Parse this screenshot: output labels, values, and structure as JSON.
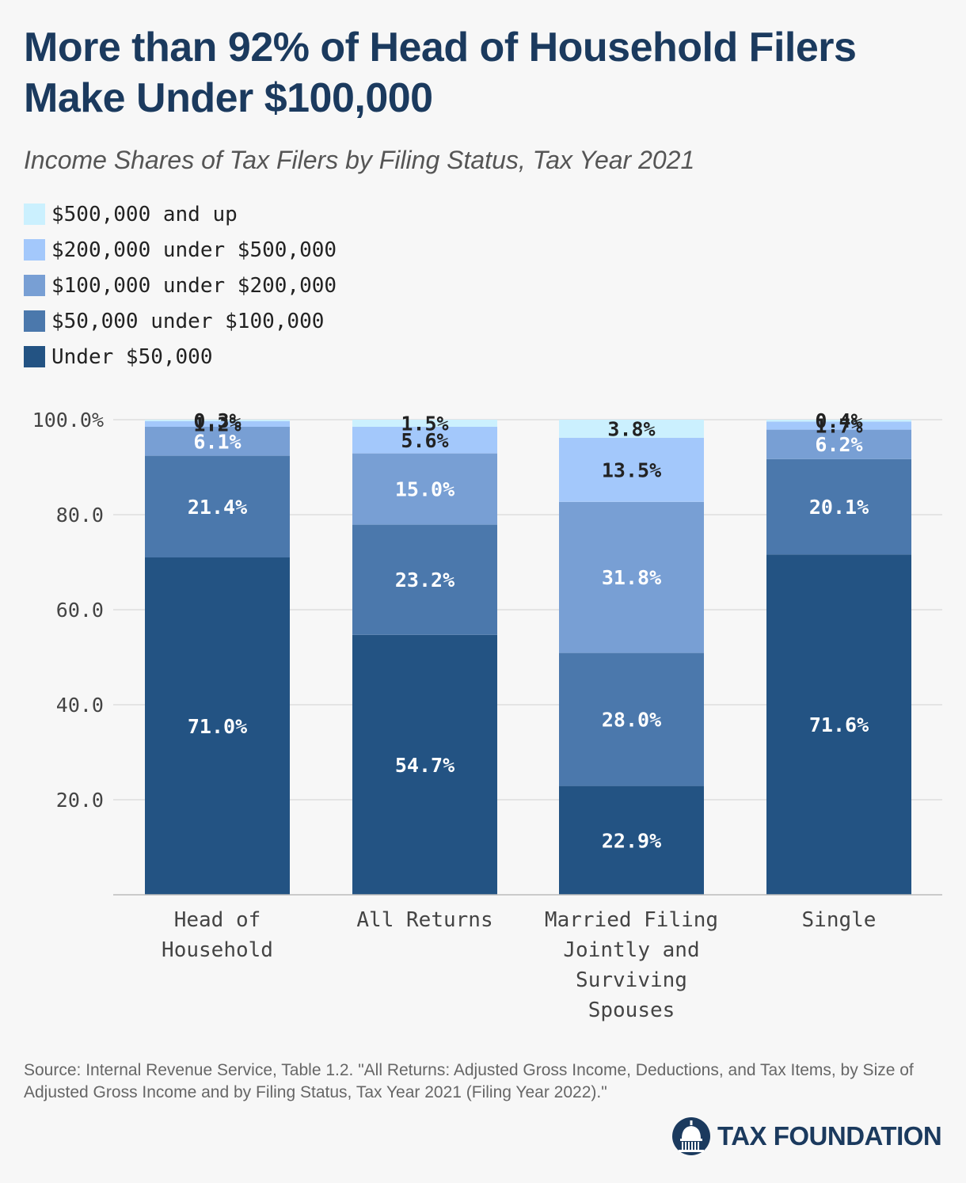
{
  "title": "More than 92% of Head of Household Filers Make Under $100,000",
  "subtitle": "Income Shares of Tax Filers by Filing Status, Tax Year 2021",
  "colors": {
    "under_50k": "#235383",
    "50k_100k": "#4b78ac",
    "100k_200k": "#789fd4",
    "200k_500k": "#a3c8fb",
    "500k_up": "#cbf0fe",
    "dark_text": "#222222",
    "light_text": "#ffffff",
    "grid": "#dddddd",
    "brand": "#1b3a5e"
  },
  "legend": [
    {
      "label": "$500,000 and up",
      "color": "#cbf0fe"
    },
    {
      "label": "$200,000 under $500,000",
      "color": "#a3c8fb"
    },
    {
      "label": "$100,000 under $200,000",
      "color": "#789fd4"
    },
    {
      "label": "$50,000 under $100,000",
      "color": "#4b78ac"
    },
    {
      "label": "Under $50,000",
      "color": "#235383"
    }
  ],
  "chart_data": {
    "type": "bar",
    "stacked": true,
    "categories": [
      "Head of Household",
      "All Returns",
      "Married Filing Jointly and Surviving Spouses",
      "Single"
    ],
    "category_lines": [
      [
        "Head of",
        "Household"
      ],
      [
        "All Returns"
      ],
      [
        "Married Filing",
        "Jointly and",
        "Surviving",
        "Spouses"
      ],
      [
        "Single"
      ]
    ],
    "series": [
      {
        "name": "Under $50,000",
        "color": "#235383",
        "values": [
          71.0,
          54.7,
          22.9,
          71.6
        ],
        "labels": [
          "71.0%",
          "54.7%",
          "22.9%",
          "71.6%"
        ]
      },
      {
        "name": "$50,000 under $100,000",
        "color": "#4b78ac",
        "values": [
          21.4,
          23.2,
          28.0,
          20.1
        ],
        "labels": [
          "21.4%",
          "23.2%",
          "28.0%",
          "20.1%"
        ]
      },
      {
        "name": "$100,000 under $200,000",
        "color": "#789fd4",
        "values": [
          6.1,
          15.0,
          31.8,
          6.2
        ],
        "labels": [
          "6.1%",
          "15.0%",
          "31.8%",
          "6.2%"
        ]
      },
      {
        "name": "$200,000 under $500,000",
        "color": "#a3c8fb",
        "values": [
          1.2,
          5.6,
          13.5,
          1.7
        ],
        "labels": [
          "1.2%",
          "5.6%",
          "13.5%",
          "1.7%"
        ]
      },
      {
        "name": "$500,000 and up",
        "color": "#cbf0fe",
        "values": [
          0.3,
          1.5,
          3.8,
          0.4
        ],
        "labels": [
          "0.3%",
          "1.5%",
          "3.8%",
          "0.4%"
        ]
      }
    ],
    "y_ticks": [
      20,
      40,
      60,
      80,
      100
    ],
    "y_tick_labels": [
      "20.0",
      "40.0",
      "60.0",
      "80.0",
      "100.0%"
    ],
    "ylim": [
      0,
      100
    ],
    "grid": true,
    "legend_position": "top-left"
  },
  "source": "Source: Internal Revenue Service, Table 1.2. \"All Returns: Adjusted Gross Income, Deductions, and Tax Items, by Size of Adjusted Gross Income and by Filing Status, Tax Year 2021 (Filing Year 2022).\"",
  "logo": {
    "text": "TAX FOUNDATION",
    "icon": "capitol-dome-icon"
  }
}
